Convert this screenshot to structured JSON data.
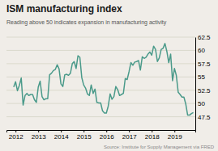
{
  "chart_data": {
    "type": "line",
    "title": "ISM manufacturing index",
    "subtitle": "Reading above 50 indicates expansion in manufacturing activity",
    "source": "Source: Institute for Supply Management via FRED",
    "color": "#4a9a8a",
    "grid": "y",
    "xlim": [
      2011.6,
      2019.92
    ],
    "xticks": [
      2012,
      2013,
      2014,
      2015,
      2016,
      2017,
      2018,
      2019
    ],
    "ylim": [
      45,
      62.5
    ],
    "yticks": [
      47.5,
      50,
      52.5,
      55,
      57.5,
      60,
      62.5
    ],
    "x": [
      2011.917,
      2012.0,
      2012.083,
      2012.167,
      2012.25,
      2012.333,
      2012.417,
      2012.5,
      2012.583,
      2012.667,
      2012.75,
      2012.833,
      2012.917,
      2013.0,
      2013.083,
      2013.167,
      2013.25,
      2013.333,
      2013.417,
      2013.5,
      2013.583,
      2013.667,
      2013.75,
      2013.833,
      2013.917,
      2014.0,
      2014.083,
      2014.167,
      2014.25,
      2014.333,
      2014.417,
      2014.5,
      2014.583,
      2014.667,
      2014.75,
      2014.833,
      2014.917,
      2015.0,
      2015.083,
      2015.167,
      2015.25,
      2015.333,
      2015.417,
      2015.5,
      2015.583,
      2015.667,
      2015.75,
      2015.833,
      2015.917,
      2016.0,
      2016.083,
      2016.167,
      2016.25,
      2016.333,
      2016.417,
      2016.5,
      2016.583,
      2016.667,
      2016.75,
      2016.833,
      2016.917,
      2017.0,
      2017.083,
      2017.167,
      2017.25,
      2017.333,
      2017.417,
      2017.5,
      2017.583,
      2017.667,
      2017.75,
      2017.833,
      2017.917,
      2018.0,
      2018.083,
      2018.167,
      2018.25,
      2018.333,
      2018.417,
      2018.5,
      2018.583,
      2018.667,
      2018.75,
      2018.833,
      2018.917,
      2019.0,
      2019.083,
      2019.167,
      2019.25,
      2019.333,
      2019.417,
      2019.5,
      2019.583,
      2019.667,
      2019.75,
      2019.833
    ],
    "values": [
      53.1,
      54.1,
      52.4,
      53.4,
      54.8,
      49.7,
      51.5,
      51.9,
      51.5,
      51.7,
      51.7,
      50.7,
      50.2,
      53.1,
      54.2,
      51.3,
      50.7,
      50.9,
      50.9,
      55.4,
      55.7,
      56.2,
      56.4,
      57.3,
      56.5,
      53.7,
      53.2,
      55.4,
      55.5,
      55.3,
      55.7,
      57.5,
      57.9,
      56.6,
      59.0,
      58.7,
      54.9,
      53.5,
      52.9,
      51.8,
      51.5,
      53.5,
      51.9,
      52.7,
      50.2,
      50.1,
      50.1,
      48.6,
      48.2,
      48.2,
      49.5,
      51.8,
      50.8,
      51.3,
      53.2,
      52.6,
      51.5,
      51.7,
      51.9,
      54.7,
      54.5,
      56.0,
      57.7,
      57.2,
      57.8,
      57.9,
      58.1,
      56.3,
      58.8,
      58.5,
      58.7,
      59.3,
      59.7,
      59.1,
      60.8,
      60.2,
      57.9,
      58.6,
      60.2,
      60.4,
      61.3,
      59.8,
      57.7,
      59.3,
      54.3,
      56.6,
      55.3,
      52.1,
      51.7,
      51.2,
      51.2,
      49.9,
      47.8,
      47.8,
      48.1,
      48.3
    ]
  }
}
